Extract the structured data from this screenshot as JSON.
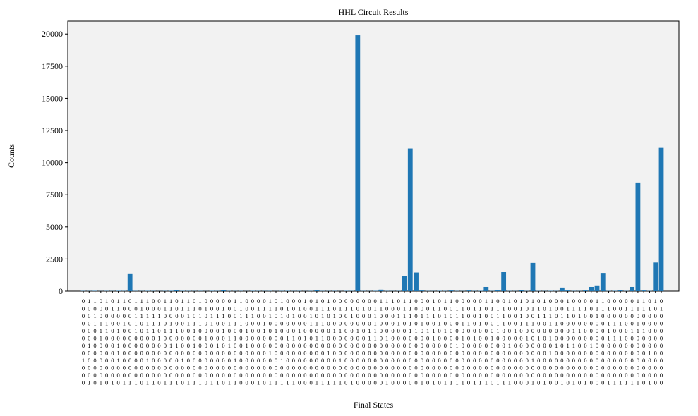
{
  "chart_data": {
    "type": "bar",
    "title": "HHL Circuit Results",
    "x_label": "Final States",
    "y_label": "Counts",
    "color": "#1f77b4",
    "background": "#f2f2f2",
    "ylim": [
      0,
      21000
    ],
    "yticks": [
      0,
      2500,
      5000,
      7500,
      10000,
      12500,
      15000,
      17500,
      20000
    ],
    "label_rows": [
      "0110101101110011011010000011000010100010101000000001110110001011000001100101010100010000110000011010",
      "0000011000100011011101001001001111010100111011101011000110001100110110111001011010011110111001111101",
      "0010000001111100001010111001110010101001010100100010001110111010110010011001001110110100100000000000",
      "0011100101011101001110100111000100000001110000000010001010100100011010011001110011000000001110010000",
      "0001101001011011100100001000100101000100000110010110000011011010000000010010000000001100001000111000",
      "0001000000000100000001000110000000011010110000000110100000001000010100100000101010000000001110000000",
      "0100001000000001100100010100100000000000000000000000000000000000100000000100000001011001000000000000",
      "0000001000000000000000000000000010000000001000000000000000000000000000000000000010000000000000000100",
      "1000001000010000010000000010000000100000000010000000000000000000000000000000010000000000000000000000",
      "0000000000000000000000000000000000000000000000000000000000000000000000000000000000000000000000000000",
      "0000000000000000000000000000000000000000000000000000000000000000000000000000000000000000000000000000",
      "0101010111011011101110110110001011111000111110100000100000101011110111011100010100101010001111110100"
    ],
    "values": [
      20,
      15,
      25,
      10,
      20,
      15,
      30,
      20,
      1380,
      20,
      15,
      25,
      20,
      10,
      20,
      30,
      60,
      25,
      20,
      15,
      20,
      10,
      25,
      20,
      100,
      20,
      15,
      20,
      10,
      25,
      20,
      15,
      20,
      10,
      20,
      25,
      15,
      20,
      10,
      20,
      80,
      20,
      15,
      20,
      10,
      25,
      20,
      19900,
      20,
      15,
      25,
      120,
      20,
      15,
      20,
      1200,
      11100,
      1450,
      50,
      20,
      15,
      25,
      20,
      50,
      20,
      15,
      50,
      20,
      25,
      330,
      20,
      100,
      1480,
      20,
      15,
      100,
      20,
      2200,
      20,
      15,
      25,
      20,
      280,
      50,
      20,
      15,
      50,
      330,
      450,
      1420,
      20,
      25,
      100,
      20,
      330,
      8450,
      50,
      20,
      2230,
      11150
    ]
  }
}
